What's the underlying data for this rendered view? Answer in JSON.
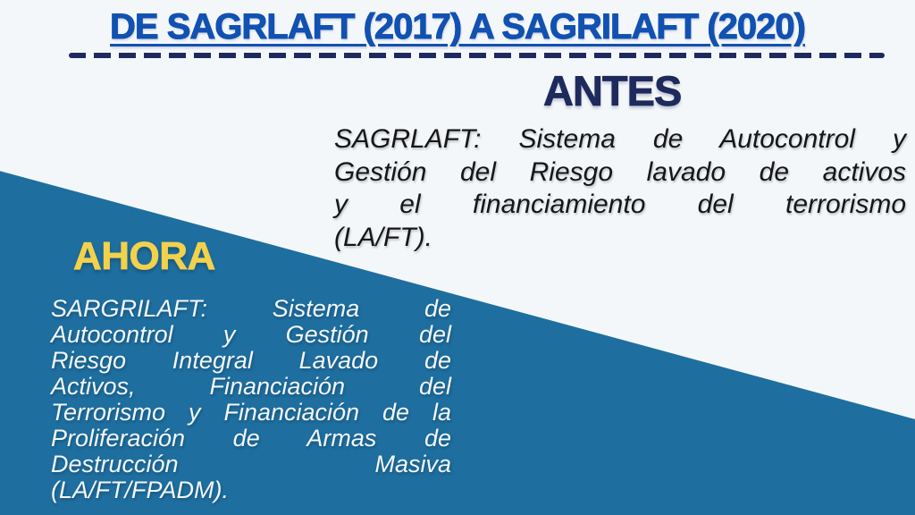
{
  "slide": {
    "title": "DE SAGRLAFT (2017) A SAGRILAFT (2020)",
    "antes": {
      "heading": "ANTES",
      "lines": [
        "SAGRLAFT: Sistema de Autocontrol y",
        "Gestión del Riesgo lavado de activos",
        "y el financiamiento del terrorismo",
        "(LA/FT)."
      ]
    },
    "ahora": {
      "heading": "AHORA",
      "lines": [
        "SARGRILAFT: Sistema de",
        "Autocontrol y Gestión del",
        "Riesgo Integral Lavado de",
        "Activos, Financiación del",
        "Terrorismo y Financiación de la",
        "Proliferación de Armas de",
        "Destrucción Masiva",
        "(LA/FT/FPADM)."
      ]
    },
    "colors": {
      "background": "#f4f7fa",
      "title_blue": "#1151b2",
      "navy": "#1e2a5e",
      "panel_blue": "#1e6fa0",
      "yellow": "#f2d14c",
      "antes_text": "#161616",
      "ahora_text": "#f3f7f9"
    }
  }
}
